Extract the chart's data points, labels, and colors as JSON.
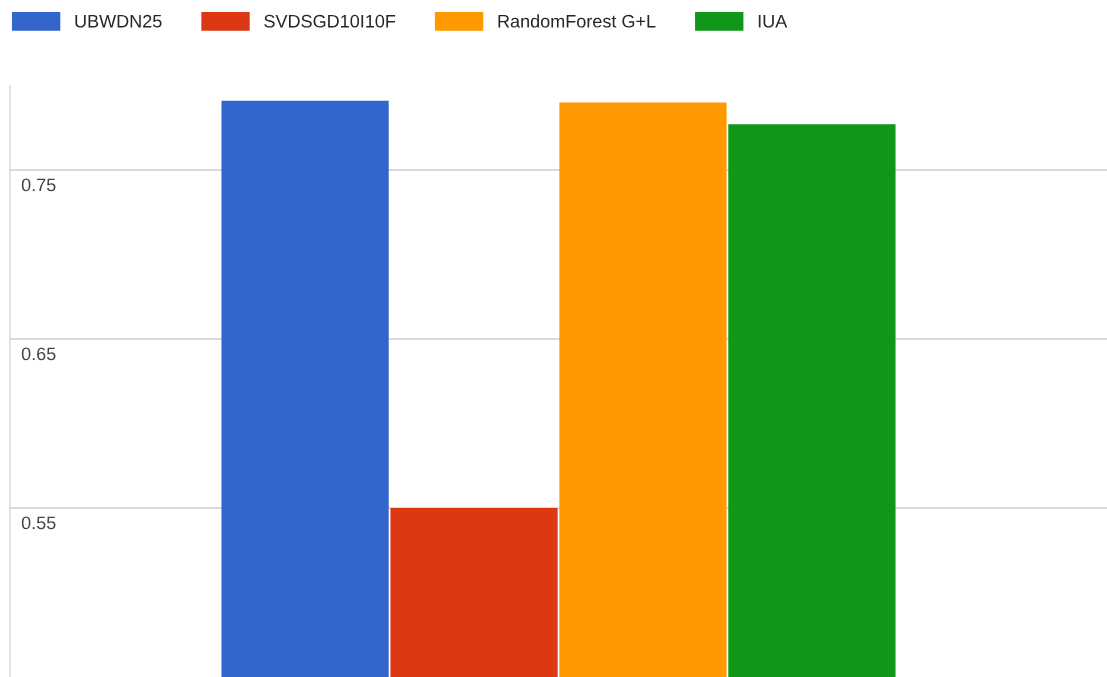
{
  "chart_data": {
    "type": "bar",
    "categories": [
      null
    ],
    "series": [
      {
        "name": "UBWDN25",
        "color": "#3366cc",
        "values": [
          0.791
        ]
      },
      {
        "name": "SVDSGD10I10F",
        "color": "#dc3912",
        "values": [
          0.55
        ]
      },
      {
        "name": "RandomForest G+L",
        "color": "#ff9900",
        "values": [
          0.79
        ]
      },
      {
        "name": "IUA",
        "color": "#109618",
        "values": [
          0.777
        ]
      }
    ],
    "ylim": [
      0.45,
      0.8
    ],
    "yticks": [
      0.55,
      0.65,
      0.75
    ],
    "grid": "y",
    "legend": "top left",
    "tick_labels": "y"
  }
}
